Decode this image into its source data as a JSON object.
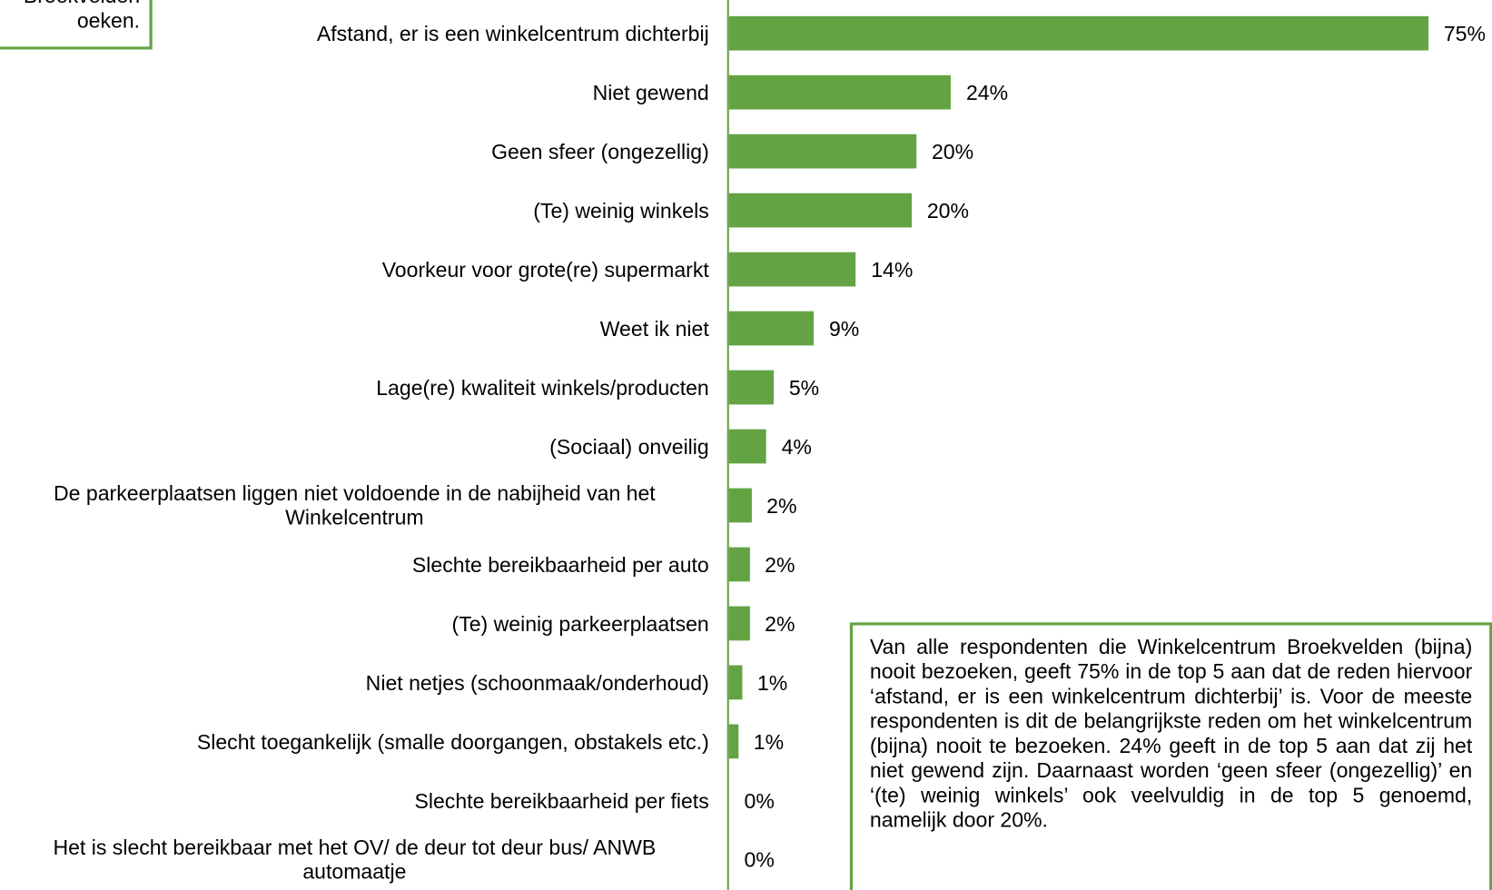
{
  "chart_data": {
    "type": "bar",
    "orientation": "horizontal",
    "color": "#63a343",
    "categories": [
      "Afstand, er is een winkelcentrum dichterbij",
      "Niet gewend",
      "Geen sfeer (ongezellig)",
      "(Te) weinig winkels",
      "Voorkeur voor grote(re) supermarkt",
      "Weet ik niet",
      "Lage(re) kwaliteit winkels/producten",
      "(Sociaal) onveilig",
      "De parkeerplaatsen liggen niet voldoende in de nabijheid van het Winkelcentrum",
      "Slechte bereikbaarheid per auto",
      "(Te) weinig parkeerplaatsen",
      "Niet netjes (schoonmaak/onderhoud)",
      "Slecht toegankelijk (smalle doorgangen, obstakels etc.)",
      "Slechte bereikbaarheid per fiets",
      "Het is slecht bereikbaar met het OV/ de deur tot deur bus/ ANWB automaatje"
    ],
    "values": [
      75,
      23.8,
      20.1,
      19.6,
      13.6,
      9.1,
      4.8,
      4.0,
      2.4,
      2.2,
      2.2,
      1.4,
      1.0,
      0,
      0
    ],
    "value_labels": [
      "75%",
      "24%",
      "20%",
      "20%",
      "14%",
      "9%",
      "5%",
      "4%",
      "2%",
      "2%",
      "2%",
      "1%",
      "1%",
      "0%",
      "0%"
    ],
    "annotations": [
      "Broekvelden",
      "oeken.",
      "Van alle respondenten die Winkelcentrum Broekvelden (bijna) nooit bezoeken, geeft 75% in de top 5 aan dat de reden hiervoor ‘afstand, er is een winkelcentrum dichterbij’ is. Voor de meeste respondenten is dit de belangrijkste reden om het winkelcentrum (bijna) nooit te bezoeken. 24% geeft in de top 5 aan dat zij het niet gewend zijn. Daarnaast worden ‘geen sfeer (ongezellig)’ en ‘(te) weinig winkels’ ook veelvuldig in de top 5 genoemd, namelijk door 20%."
    ]
  }
}
